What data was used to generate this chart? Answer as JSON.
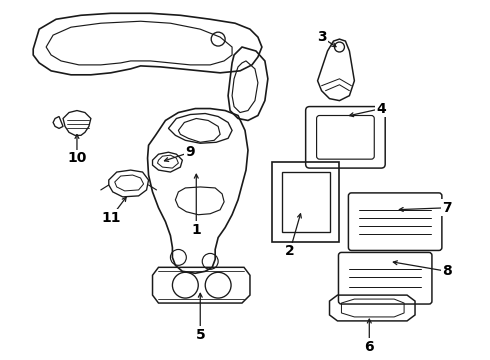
{
  "background_color": "#ffffff",
  "line_color": "#1a1a1a",
  "label_color": "#000000",
  "fig_width": 4.9,
  "fig_height": 3.6,
  "dpi": 100,
  "lw": 1.2
}
